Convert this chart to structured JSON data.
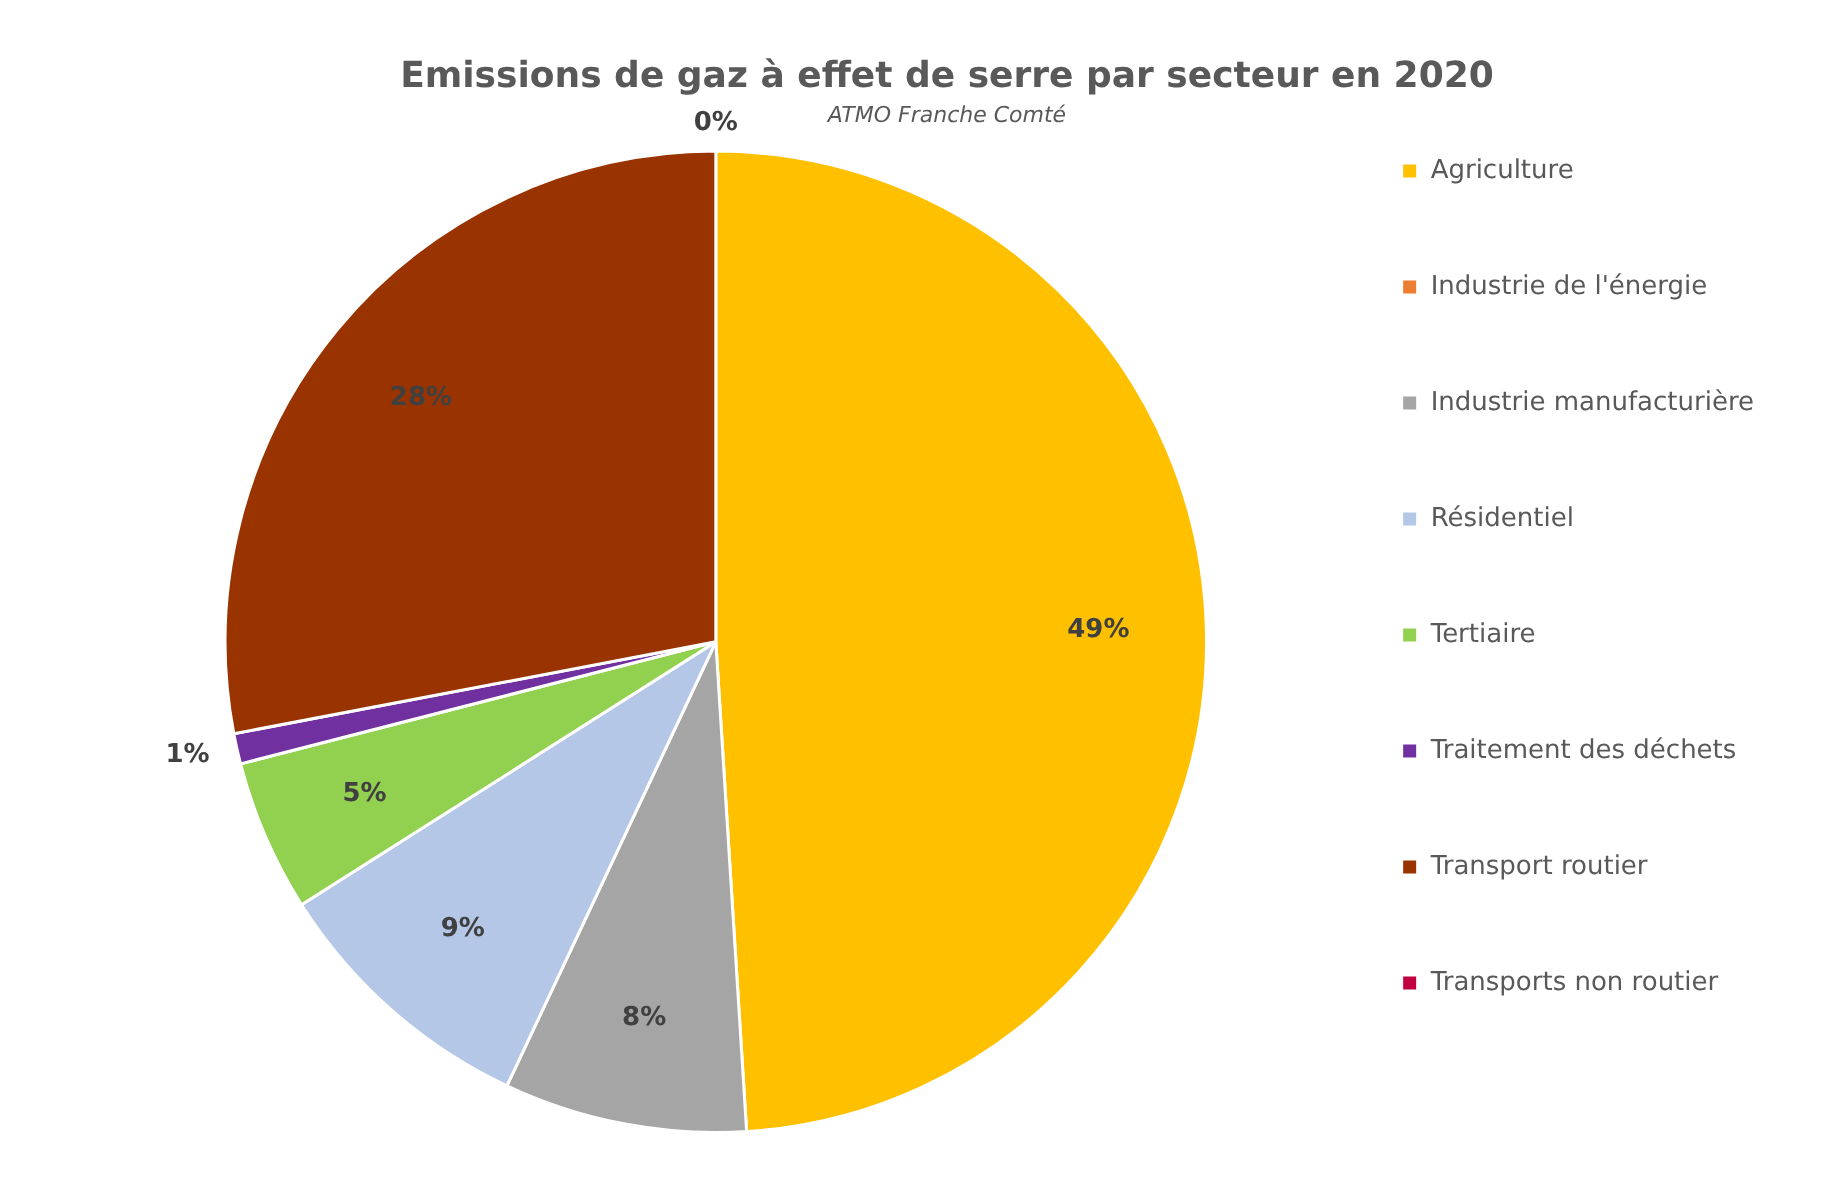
{
  "chart_data": {
    "type": "pie",
    "title": "Emissions de gaz à effet de serre par secteur en 2020",
    "subtitle": "ATMO Franche Comté",
    "categories": [
      "Agriculture",
      "Industrie de l'énergie",
      "Industrie manufacturière",
      "Résidentiel",
      "Tertiaire",
      "Traitement des déchets",
      "Transport routier",
      "Transports non routier"
    ],
    "values": [
      49,
      0,
      8,
      9,
      5,
      1,
      28,
      0
    ],
    "colors": [
      "#ffc000",
      "#ed7d31",
      "#a5a5a5",
      "#b4c7e7",
      "#92d050",
      "#7030a0",
      "#993300",
      "#c00040"
    ],
    "value_labels": [
      "49%",
      null,
      "8%",
      "9%",
      "5%",
      "1%",
      "28%",
      "0%"
    ],
    "legend": "right"
  }
}
